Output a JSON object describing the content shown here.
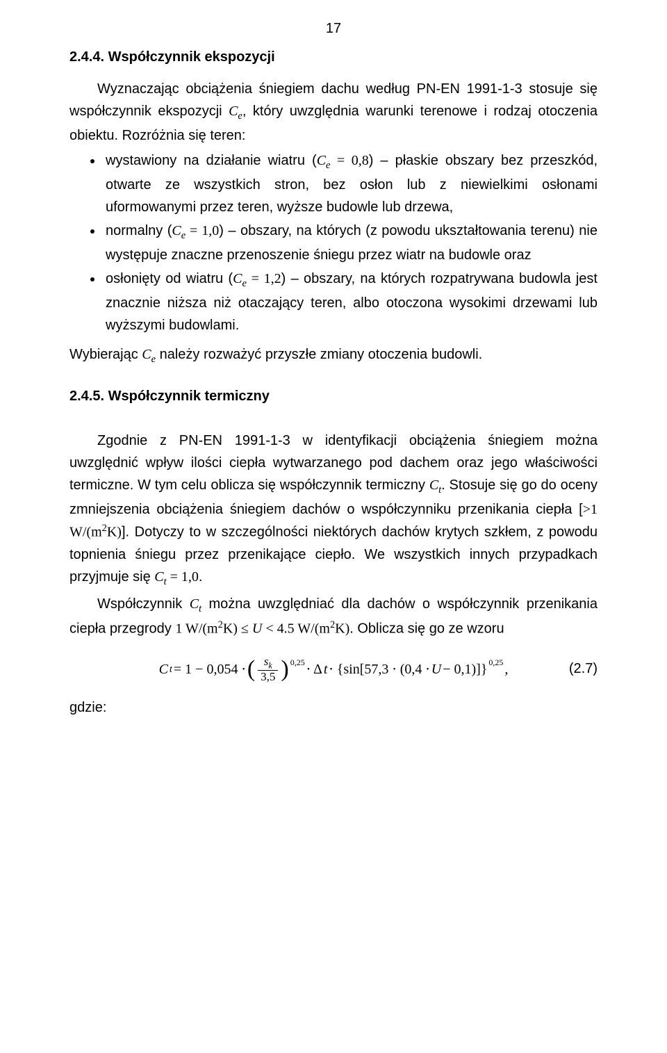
{
  "page": {
    "number": "17",
    "font_family": "Arial",
    "math_font_family": "Times New Roman",
    "body_fontsize_pt": 15,
    "text_color": "#000000",
    "background_color": "#ffffff"
  },
  "section_244": {
    "heading": "2.4.4. Współczynnik ekspozycji",
    "intro_a": "Wyznaczając obciążenia śniegiem dachu według PN-EN 1991-1-3 stosuje się współczynnik ekspozycji ",
    "ce": "C",
    "ce_sub": "e",
    "intro_b": ", który uwzględnia warunki terenowe i rodzaj otoczenia obiektu. Rozróżnia się teren:",
    "bullets": [
      {
        "pre": "wystawiony na działanie wiatru (",
        "sym": "C",
        "sub": "e",
        "eq": " = 0,8",
        "post": ") – płaskie obszary bez przeszkód, otwarte ze wszystkich stron, bez osłon lub z niewielkimi osłonami uformowanymi przez teren, wyższe budowle lub drzewa,"
      },
      {
        "pre": "normalny (",
        "sym": "C",
        "sub": "e",
        "eq": " = 1,0",
        "post": ") – obszary, na których (z powodu ukształtowania terenu) nie występuje znaczne przenoszenie śniegu przez wiatr na budowle oraz"
      },
      {
        "pre": "osłonięty od wiatru (",
        "sym": "C",
        "sub": "e",
        "eq": " = 1,2",
        "post": ") – obszary, na których rozpatrywana budowla jest znacznie niższa niż otaczający teren, albo otoczona wysokimi drzewami lub wyższymi budowlami."
      }
    ],
    "outro_a": "Wybierając ",
    "outro_sym": "C",
    "outro_sub": "e",
    "outro_b": " należy rozważyć przyszłe zmiany otoczenia budowli."
  },
  "section_245": {
    "heading": "2.4.5. Współczynnik termiczny",
    "p1_a": "Zgodnie z PN-EN 1991-1-3 w identyfikacji obciążenia śniegiem można uwzględnić wpływ ilości ciepła wytwarzanego pod dachem oraz jego właściwości termiczne. W tym celu oblicza się współczynnik termiczny ",
    "ct": "C",
    "ct_sub": "t",
    "p1_b": ". Stosuje się go do oceny zmniejszenia obciążenia śniegiem dachów o współczynniku przenikania ciepła [",
    "p1_gt": ">1 W/(m",
    "p1_sq": "2",
    "p1_k": "K)",
    "p1_c": "]. Dotyczy to w szczególności niektórych dachów krytych szkłem, z powodu topnienia śniegu przez przenikające ciepło. We wszystkich innych przypadkach przyjmuje się ",
    "ct2": "C",
    "ct2_sub": "t",
    "ct2_val": " = 1,0",
    "p1_d": ".",
    "p2_a": "Współczynnik ",
    "p2_sym": "C",
    "p2_sub": "t",
    "p2_b": " można uwzględniać dla dachów o współczynnik przenikania ciepła przegrody ",
    "range_a": "1 W/(m",
    "range_sq1": "2",
    "range_k1": "K) ≤ ",
    "range_U": "U",
    "range_b": " < 4.5 W/(m",
    "range_sq2": "2",
    "range_k2": "K)",
    "p2_c": ". Oblicza się go ze wzoru"
  },
  "equation": {
    "lhs_sym": "C",
    "lhs_sub": "t",
    "eq": " = 1 − 0,054 ⋅ ",
    "frac_num_sym": "s",
    "frac_num_sub": "k",
    "frac_den": "3,5",
    "exp1": "0,25",
    "mid": " ⋅ Δ",
    "dt_sym": "t",
    "mid2": " ⋅ {sin[57,3 ⋅ (0,4 ⋅ ",
    "U": "U",
    "mid3": " − 0,1)]}",
    "exp2": "0,25",
    "tail": ",",
    "number": "(2.7)"
  },
  "footer": {
    "gdzie": "gdzie:"
  }
}
